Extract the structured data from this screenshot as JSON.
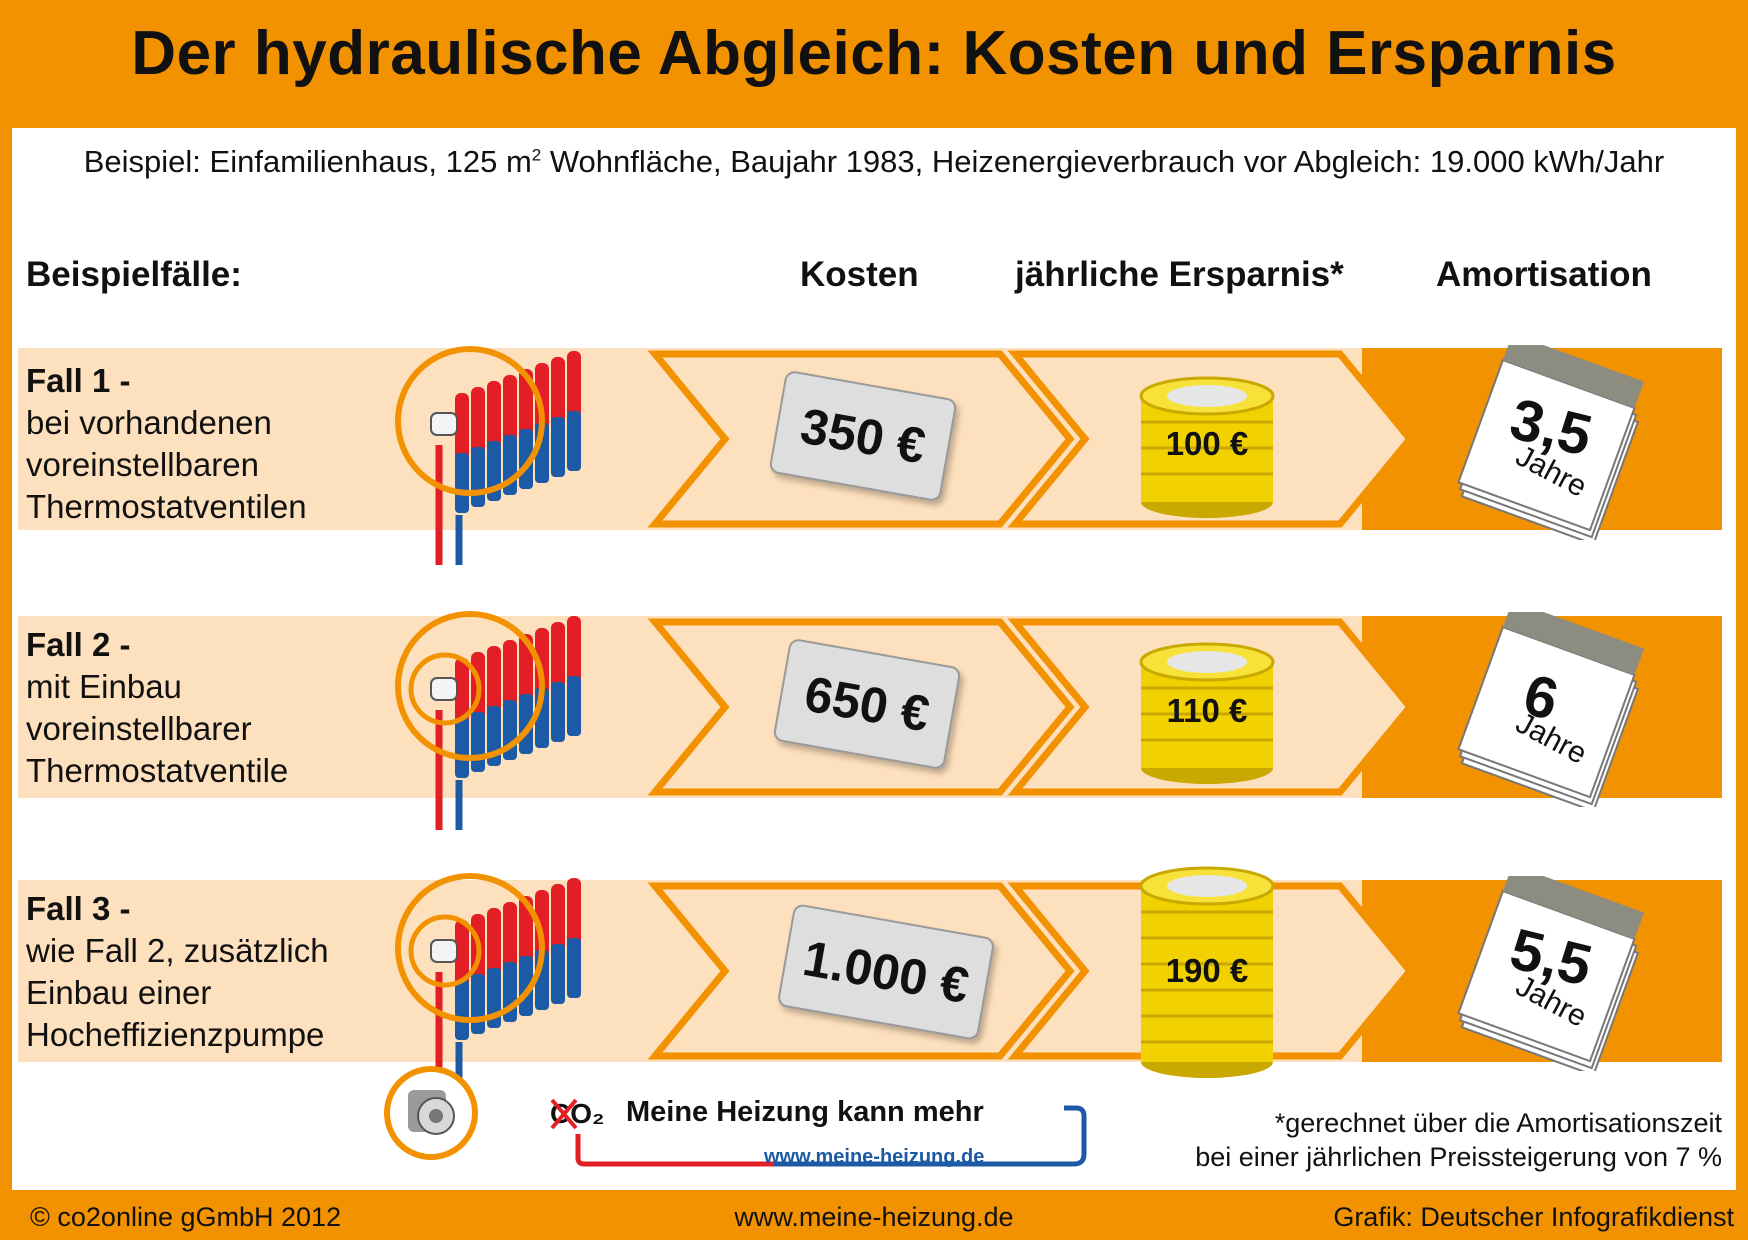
{
  "title": "Der hydraulische Abgleich: Kosten und Ersparnis",
  "subtitle": {
    "before": "Beispiel: Einfamilienhaus, 125 m",
    "sup": "2",
    "after": " Wohnfläche, Baujahr 1983, Heizenergieverbrauch vor Abgleich: 19.000 kWh/Jahr"
  },
  "headers": {
    "cases": "Beispielfälle:",
    "cost": "Kosten",
    "saving": "jährliche Ersparnis*",
    "amortisation": "Amortisation"
  },
  "cases": [
    {
      "title": "Fall 1 -",
      "lines": [
        "bei vorhandenen",
        "voreinstellbaren",
        "Thermostatventilen"
      ],
      "cost": "350 €",
      "saving": "100 €",
      "amortisation": "3,5",
      "amortisation_unit": "Jahre"
    },
    {
      "title": "Fall 2 -",
      "lines": [
        "mit Einbau",
        "voreinstellbarer",
        "Thermostatventile"
      ],
      "cost": "650 €",
      "saving": "110 €",
      "amortisation": "6",
      "amortisation_unit": "Jahre"
    },
    {
      "title": "Fall 3 -",
      "lines": [
        "wie Fall 2, zusätzlich",
        "Einbau einer",
        "Hocheffizienzpumpe"
      ],
      "cost": "1.000 €",
      "saving": "190 €",
      "amortisation": "5,5",
      "amortisation_unit": "Jahre"
    }
  ],
  "footnote": [
    "*gerechnet über die Amortisationszeit",
    "bei einer jährlichen Preissteigerung von 7 %"
  ],
  "logo": {
    "co2": "CO₂",
    "text": "Meine Heizung kann mehr",
    "url": "www.meine-heizung.de"
  },
  "footer": {
    "copyright": "© co2online gGmbH 2012",
    "url": "www.meine-heizung.de",
    "credit": "Grafik: Deutscher Infografikdienst"
  },
  "colors": {
    "orange": "#f39200",
    "band": "#fde0bd",
    "radiator_red": "#e31e24",
    "radiator_blue": "#1c5aa6",
    "coin": "#f2d100"
  }
}
